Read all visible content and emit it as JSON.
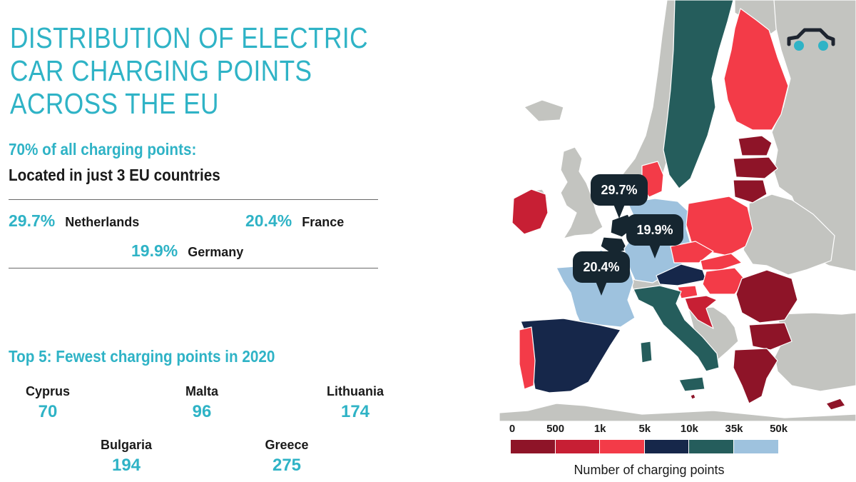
{
  "title": "DISTRIBUTION OF ELECTRIC CAR CHARGING POINTS ACROSS THE EU",
  "concentration": {
    "heading": "70% of all charging points:",
    "subheading": "Located in just 3 EU countries",
    "items": [
      {
        "pct": "29.7%",
        "country": "Netherlands"
      },
      {
        "pct": "20.4%",
        "country": "France"
      },
      {
        "pct": "19.9%",
        "country": "Germany"
      }
    ]
  },
  "fewest": {
    "heading": "Top 5: Fewest charging points in 2020",
    "items": [
      {
        "country": "Cyprus",
        "value": "70"
      },
      {
        "country": "Malta",
        "value": "96"
      },
      {
        "country": "Lithuania",
        "value": "174"
      },
      {
        "country": "Bulgaria",
        "value": "194"
      },
      {
        "country": "Greece",
        "value": "275"
      }
    ]
  },
  "map": {
    "callouts": [
      {
        "label": "29.7%",
        "country": "Netherlands"
      },
      {
        "label": "19.9%",
        "country": "Germany"
      },
      {
        "label": "20.4%",
        "country": "France"
      }
    ],
    "colors": {
      "non_eu": "#c3c4c0",
      "sea": "#ffffff",
      "callout": "#162630",
      "icon_stroke": "#1e2530",
      "icon_wheels": "#2fb3c6"
    },
    "icon": "car-icon"
  },
  "legend": {
    "ticks": [
      "0",
      "500",
      "1k",
      "5k",
      "10k",
      "35k",
      "50k"
    ],
    "colors": [
      "#8e1428",
      "#c71f34",
      "#f33b48",
      "#16274a",
      "#255d5c",
      "#9ec2de"
    ],
    "caption": "Number of charging points"
  }
}
